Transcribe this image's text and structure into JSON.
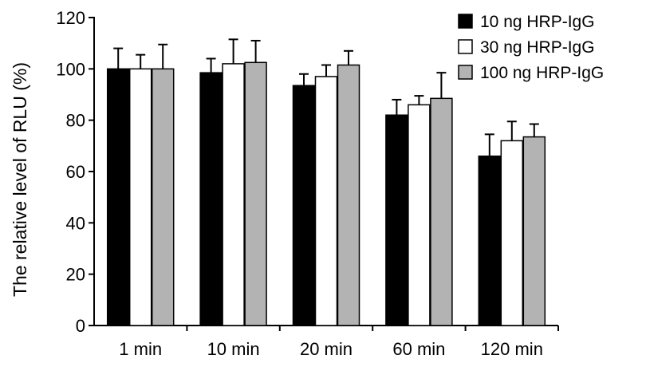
{
  "chart_data": {
    "type": "bar",
    "title": "",
    "xlabel": "",
    "ylabel": "The relative level of RLU (%)",
    "ylim": [
      0,
      120
    ],
    "yticks": [
      0,
      20,
      40,
      60,
      80,
      100,
      120
    ],
    "categories": [
      "1 min",
      "10 min",
      "20 min",
      "60 min",
      "120 min"
    ],
    "series": [
      {
        "name": "10 ng HRP-IgG",
        "color": "#000000",
        "values": [
          100,
          98.5,
          93.5,
          82,
          66
        ],
        "errors": [
          8,
          5.5,
          4.5,
          6,
          8.5
        ]
      },
      {
        "name": "30 ng HRP-IgG",
        "color": "#ffffff",
        "values": [
          100,
          102,
          97,
          86,
          72
        ],
        "errors": [
          5.5,
          9.5,
          4.5,
          3.5,
          7.5
        ]
      },
      {
        "name": "100 ng HRP-IgG",
        "color": "#b3b3b3",
        "values": [
          100,
          102.5,
          101.5,
          88.5,
          73.5
        ],
        "errors": [
          9.5,
          8.5,
          5.5,
          10,
          5
        ]
      }
    ],
    "legend": "top-right",
    "grid": false
  }
}
